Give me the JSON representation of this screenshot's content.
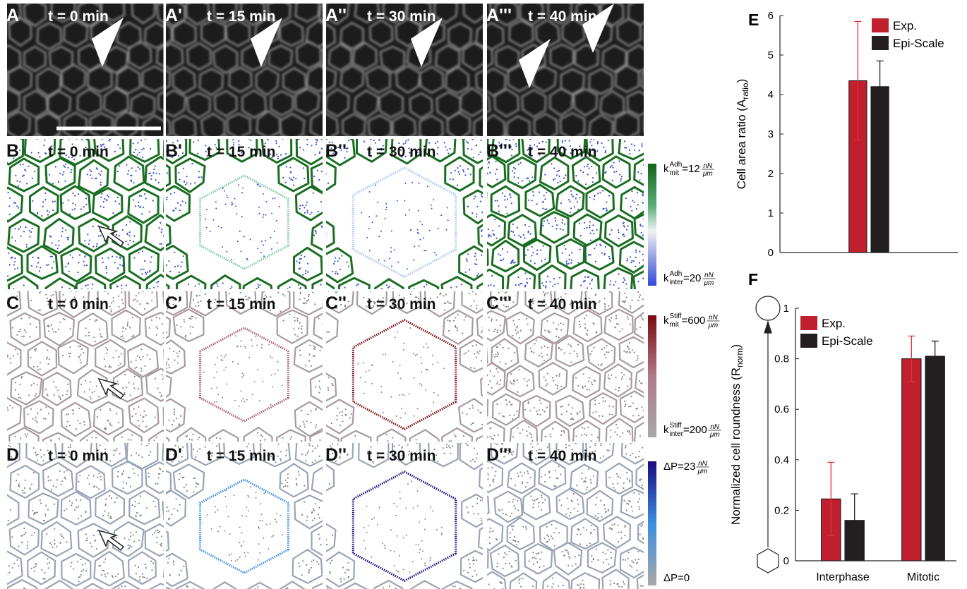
{
  "panels": [
    {
      "cells": [
        {
          "label": "A",
          "time": "t = 0 min"
        },
        {
          "label": "A'",
          "time": "t = 15 min"
        },
        {
          "label": "A''",
          "time": "t = 30 min"
        },
        {
          "label": "A'''",
          "time": "t = 40 min"
        }
      ]
    },
    {
      "cells": [
        {
          "label": "B",
          "time": "t = 0 min"
        },
        {
          "label": "B'",
          "time": "t = 15 min"
        },
        {
          "label": "B''",
          "time": "t = 30 min"
        },
        {
          "label": "B'''",
          "time": "t = 40 min"
        }
      ]
    },
    {
      "cells": [
        {
          "label": "C",
          "time": "t = 0 min"
        },
        {
          "label": "C'",
          "time": "t = 15 min"
        },
        {
          "label": "C''",
          "time": "t = 30 min"
        },
        {
          "label": "C'''",
          "time": "t = 40 min"
        }
      ]
    },
    {
      "cells": [
        {
          "label": "D",
          "time": "t = 0 min"
        },
        {
          "label": "D'",
          "time": "t = 15 min"
        },
        {
          "label": "D''",
          "time": "t = 30 min"
        },
        {
          "label": "D'''",
          "time": "t = 40 min"
        }
      ]
    }
  ],
  "colorbars": [
    {
      "top": {
        "base": "k",
        "sup": "Adh",
        "sub": "mit",
        "eq": "=12",
        "num": "nN",
        "den": "μm"
      },
      "bottom": {
        "base": "k",
        "sup": "Adh",
        "sub": "inter",
        "eq": "=20",
        "num": "nN",
        "den": "μm"
      }
    },
    {
      "top": {
        "base": "k",
        "sup": "Stiff",
        "sub": "mit",
        "eq": "=600",
        "num": "nN",
        "den": "μm"
      },
      "bottom": {
        "base": "k",
        "sup": "Stiff",
        "sub": "inter",
        "eq": "=200",
        "num": "nN",
        "den": "μm"
      }
    },
    {
      "top": {
        "base": "ΔP=23",
        "num": "nN",
        "den": "μm"
      },
      "bottom": {
        "base": "ΔP=0"
      }
    }
  ],
  "chart_data": [
    {
      "type": "bar",
      "panel": "E",
      "ylabel": "Cell area ratio (A",
      "ylabel_sub": "ratio",
      "ylabel_end": ")",
      "categories": [
        null
      ],
      "ylim": [
        0,
        6
      ],
      "yticks": [
        0,
        1,
        2,
        3,
        4,
        5,
        6
      ],
      "series": [
        {
          "name": "Exp.",
          "color": "#c0202e",
          "values": [
            4.35
          ],
          "errors": [
            1.5
          ]
        },
        {
          "name": "Epi-Scale",
          "color": "#231f20",
          "values": [
            4.2
          ],
          "errors": [
            0.65
          ]
        }
      ]
    },
    {
      "type": "bar",
      "panel": "F",
      "ylabel": "Normalized cell roundness (R",
      "ylabel_sub": "norm",
      "ylabel_end": ")",
      "categories": [
        "Interphase",
        "Mitotic"
      ],
      "ylim": [
        0,
        1
      ],
      "yticks": [
        0,
        0.2,
        0.4,
        0.6,
        0.8,
        1
      ],
      "series": [
        {
          "name": "Exp.",
          "color": "#c0202e",
          "values": [
            0.245,
            0.8
          ],
          "errors": [
            0.145,
            0.09
          ]
        },
        {
          "name": "Epi-Scale",
          "color": "#231f20",
          "values": [
            0.16,
            0.81
          ],
          "errors": [
            0.105,
            0.06
          ]
        }
      ]
    }
  ]
}
